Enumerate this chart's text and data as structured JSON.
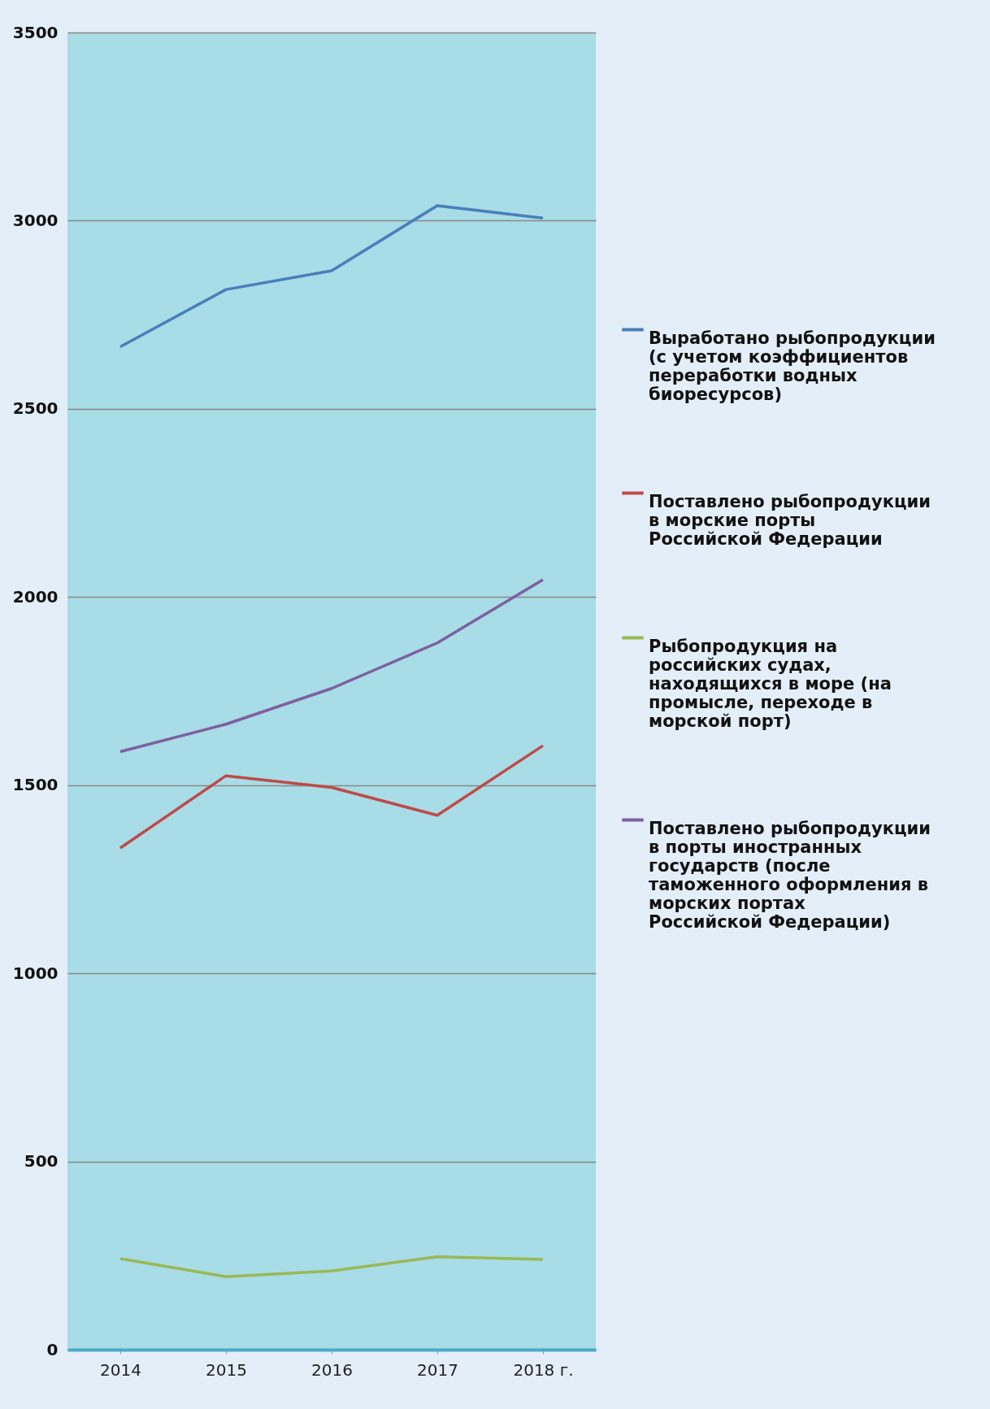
{
  "chart_data": {
    "type": "line",
    "categories": [
      "2014",
      "2015",
      "2016",
      "2017",
      "2018 г."
    ],
    "ylim": [
      0,
      3500
    ],
    "yticks": [
      0,
      500,
      1000,
      1500,
      2000,
      2500,
      3000,
      3500
    ],
    "grid": "y",
    "legend": "right",
    "line_style": "solid",
    "marker": "none",
    "series": [
      {
        "name": "Выработано рыбопродукции (с учетом коэффициентов переработки водных биоресурсов)",
        "color": "#4a7ebb",
        "values": [
          2665,
          2817,
          2867,
          3040,
          3007
        ]
      },
      {
        "name": "Поставлено рыбопродукции в морские порты Российской Федерации",
        "color": "#be4b48",
        "values": [
          1333,
          1525,
          1494,
          1420,
          1605
        ]
      },
      {
        "name": "Рыбопродукция  на российских судах, находящихся в море (на промысле, переходе в морской порт)",
        "color": "#98b954",
        "values": [
          242,
          194,
          209,
          247,
          240
        ]
      },
      {
        "name": "Поставлено рыбопродукции в порты иностранных государств (после таможенного оформления в морских портах Российской Федерации)",
        "color": "#7d60a0",
        "values": [
          1589,
          1662,
          1757,
          1878,
          2046
        ]
      }
    ]
  }
}
